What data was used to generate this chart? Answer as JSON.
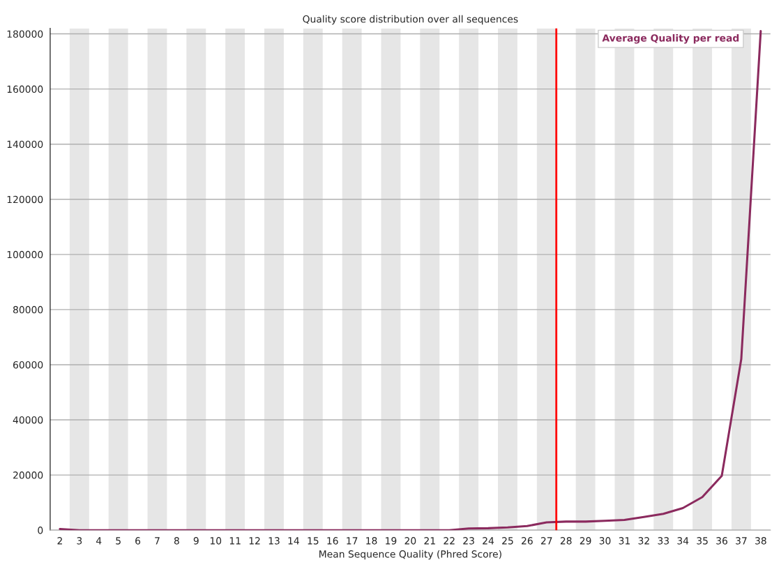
{
  "chart_data": {
    "type": "line",
    "title": "Quality score distribution over all sequences",
    "xlabel": "Mean Sequence Quality (Phred Score)",
    "x": [
      2,
      3,
      4,
      5,
      6,
      7,
      8,
      9,
      10,
      11,
      12,
      13,
      14,
      15,
      16,
      17,
      18,
      19,
      20,
      21,
      22,
      23,
      24,
      25,
      26,
      27,
      28,
      29,
      30,
      31,
      32,
      33,
      34,
      35,
      36,
      37,
      38
    ],
    "series": [
      {
        "name": "Average Quality per read",
        "color": "#8b2a5e",
        "values": [
          400,
          0,
          0,
          0,
          0,
          0,
          0,
          0,
          0,
          0,
          0,
          0,
          0,
          0,
          0,
          0,
          0,
          0,
          0,
          0,
          0,
          600,
          700,
          1000,
          1500,
          2800,
          3100,
          3100,
          3400,
          3700,
          4800,
          5900,
          8000,
          12000,
          19700,
          62000,
          181000
        ]
      }
    ],
    "xlim": [
      1.5,
      38.5
    ],
    "xticks": [
      2,
      3,
      4,
      5,
      6,
      7,
      8,
      9,
      10,
      11,
      12,
      13,
      14,
      15,
      16,
      17,
      18,
      19,
      20,
      21,
      22,
      23,
      24,
      25,
      26,
      27,
      28,
      29,
      30,
      31,
      32,
      33,
      34,
      35,
      36,
      37,
      38
    ],
    "ylim": [
      0,
      182000
    ],
    "yticks": [
      0,
      20000,
      40000,
      60000,
      80000,
      100000,
      120000,
      140000,
      160000,
      180000
    ],
    "ref_lines": [
      {
        "axis": "x",
        "value": 27.5,
        "color": "#ff0000"
      }
    ],
    "bands": [
      {
        "axis": "x",
        "from": 2.5,
        "to": 3.5,
        "color": "#e6e6e6"
      },
      {
        "axis": "x",
        "from": 4.5,
        "to": 5.5,
        "color": "#e6e6e6"
      },
      {
        "axis": "x",
        "from": 6.5,
        "to": 7.5,
        "color": "#e6e6e6"
      },
      {
        "axis": "x",
        "from": 8.5,
        "to": 9.5,
        "color": "#e6e6e6"
      },
      {
        "axis": "x",
        "from": 10.5,
        "to": 11.5,
        "color": "#e6e6e6"
      },
      {
        "axis": "x",
        "from": 12.5,
        "to": 13.5,
        "color": "#e6e6e6"
      },
      {
        "axis": "x",
        "from": 14.5,
        "to": 15.5,
        "color": "#e6e6e6"
      },
      {
        "axis": "x",
        "from": 16.5,
        "to": 17.5,
        "color": "#e6e6e6"
      },
      {
        "axis": "x",
        "from": 18.5,
        "to": 19.5,
        "color": "#e6e6e6"
      },
      {
        "axis": "x",
        "from": 20.5,
        "to": 21.5,
        "color": "#e6e6e6"
      },
      {
        "axis": "x",
        "from": 22.5,
        "to": 23.5,
        "color": "#e6e6e6"
      },
      {
        "axis": "x",
        "from": 24.5,
        "to": 25.5,
        "color": "#e6e6e6"
      },
      {
        "axis": "x",
        "from": 26.5,
        "to": 27.5,
        "color": "#e6e6e6"
      },
      {
        "axis": "x",
        "from": 28.5,
        "to": 29.5,
        "color": "#e6e6e6"
      },
      {
        "axis": "x",
        "from": 30.5,
        "to": 31.5,
        "color": "#e6e6e6"
      },
      {
        "axis": "x",
        "from": 32.5,
        "to": 33.5,
        "color": "#e6e6e6"
      },
      {
        "axis": "x",
        "from": 34.5,
        "to": 35.5,
        "color": "#e6e6e6"
      },
      {
        "axis": "x",
        "from": 36.5,
        "to": 37.5,
        "color": "#e6e6e6"
      }
    ],
    "grid": "y",
    "legend": "top right",
    "marker": "none",
    "line_style": "solid"
  }
}
